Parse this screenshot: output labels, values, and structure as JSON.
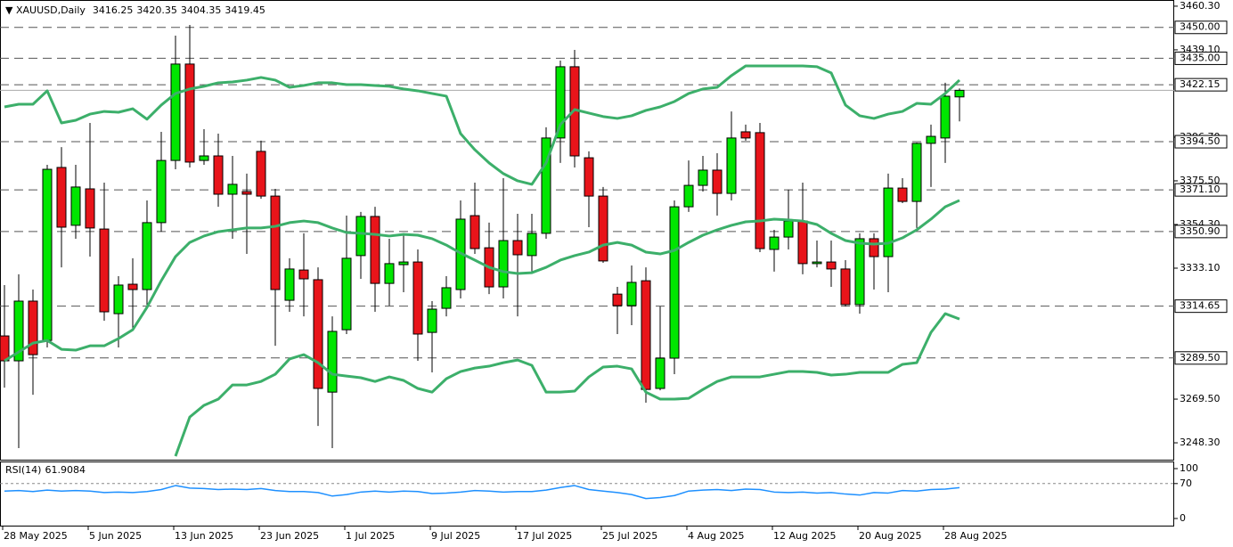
{
  "chart_data": [
    {
      "type": "candlestick",
      "symbol": "XAUUSD,Daily",
      "categories": [
        "28 May 2025",
        null,
        null,
        null,
        null,
        null,
        "5 Jun 2025",
        null,
        null,
        null,
        null,
        null,
        "13 Jun 2025",
        null,
        null,
        null,
        null,
        null,
        "23 Jun 2025",
        null,
        null,
        null,
        null,
        null,
        "1 Jul 2025",
        null,
        null,
        null,
        null,
        null,
        "9 Jul 2025",
        null,
        null,
        null,
        null,
        null,
        "17 Jul 2025",
        null,
        null,
        null,
        null,
        null,
        "25 Jul 2025",
        null,
        null,
        null,
        null,
        null,
        "4 Aug 2025",
        null,
        null,
        null,
        null,
        null,
        "12 Aug 2025",
        null,
        null,
        null,
        null,
        null,
        "20 Aug 2025",
        null,
        null,
        null,
        null,
        null,
        "28 Aug 2025",
        null
      ],
      "open": [
        3300.2,
        3288.1,
        3317.1,
        3298.0,
        3382.0,
        3353.9,
        3371.6,
        3352.1,
        3311.0,
        3325.3,
        3322.7,
        3355.2,
        3385.4,
        3432.2,
        3385.4,
        3387.6,
        3369.0,
        3370.3,
        3389.8,
        3368.1,
        3317.5,
        3332.2,
        3327.5,
        3272.9,
        3303.2,
        3339.2,
        3358.2,
        3325.7,
        3334.8,
        3336.1,
        3301.9,
        3313.6,
        3322.7,
        3358.6,
        3343.0,
        3324.0,
        3346.5,
        3339.2,
        3350.0,
        3396.3,
        3430.9,
        3386.7,
        3368.1,
        3320.5,
        3314.9,
        3327.0,
        3274.7,
        3289.4,
        3362.9,
        3373.3,
        3380.7,
        3369.4,
        3399.3,
        3398.9,
        3342.2,
        3348.2,
        3356.0,
        3335.3,
        3336.1,
        3332.7,
        3315.4,
        3347.4,
        3338.7,
        3372.0,
        3365.5,
        3393.7,
        3396.3,
        3416.25
      ],
      "high": [
        3324.9,
        3330.1,
        3322.7,
        3383.3,
        3391.9,
        3383.3,
        3403.6,
        3374.6,
        3329.2,
        3337.9,
        3366.0,
        3399.3,
        3446.0,
        3451.2,
        3400.6,
        3398.4,
        3387.6,
        3379.0,
        3395.0,
        3371.6,
        3337.9,
        3350.0,
        3333.5,
        3309.7,
        3358.6,
        3360.4,
        3362.9,
        3347.4,
        3350.0,
        3342.2,
        3317.1,
        3329.2,
        3366.0,
        3374.6,
        3355.2,
        3376.8,
        3359.5,
        3359.5,
        3401.5,
        3433.9,
        3439.1,
        3389.8,
        3372.5,
        3324.0,
        3334.4,
        3333.5,
        3314.5,
        3366.0,
        3385.4,
        3387.6,
        3388.9,
        3409.2,
        3402.8,
        3403.6,
        3351.7,
        3371.2,
        3374.6,
        3346.5,
        3346.5,
        3337.0,
        3350.0,
        3350.0,
        3379.0,
        3376.8,
        3394.1,
        3402.8,
        3423.1,
        3420.35
      ],
      "low": [
        3275.1,
        3245.7,
        3271.6,
        3294.6,
        3333.5,
        3347.4,
        3338.7,
        3307.6,
        3294.6,
        3303.2,
        3314.1,
        3350.8,
        3381.1,
        3382.0,
        3383.3,
        3362.9,
        3347.4,
        3340.0,
        3366.8,
        3295.4,
        3311.9,
        3309.7,
        3256.5,
        3245.7,
        3301.1,
        3327.9,
        3311.9,
        3314.9,
        3321.4,
        3288.1,
        3282.5,
        3309.7,
        3318.4,
        3340.0,
        3320.5,
        3318.4,
        3309.7,
        3331.4,
        3347.4,
        3384.2,
        3382.0,
        3353.0,
        3335.7,
        3301.1,
        3305.4,
        3267.8,
        3273.8,
        3281.6,
        3360.4,
        3370.3,
        3358.6,
        3366.0,
        3395.0,
        3340.9,
        3331.4,
        3342.2,
        3330.1,
        3333.5,
        3324.0,
        3314.5,
        3311.0,
        3322.7,
        3321.4,
        3364.7,
        3352.6,
        3372.5,
        3384.2,
        3404.35
      ],
      "close": [
        3288.1,
        3317.1,
        3291.1,
        3381.1,
        3353.0,
        3372.5,
        3352.6,
        3311.9,
        3324.9,
        3322.7,
        3355.2,
        3385.4,
        3432.2,
        3384.6,
        3387.6,
        3369.0,
        3373.8,
        3369.0,
        3368.1,
        3322.7,
        3332.7,
        3327.9,
        3274.7,
        3302.4,
        3337.9,
        3358.2,
        3325.7,
        3335.3,
        3336.1,
        3301.1,
        3313.2,
        3323.6,
        3356.9,
        3342.6,
        3324.0,
        3346.5,
        3339.6,
        3350.0,
        3396.3,
        3430.9,
        3387.6,
        3368.1,
        3336.6,
        3314.9,
        3326.2,
        3274.2,
        3289.4,
        3362.9,
        3373.3,
        3380.7,
        3369.4,
        3396.3,
        3396.3,
        3342.6,
        3348.2,
        3356.0,
        3335.3,
        3336.1,
        3332.7,
        3315.4,
        3347.4,
        3338.7,
        3372.0,
        3365.5,
        3393.7,
        3397.1,
        3416.6,
        3419.45
      ],
      "up_color": "#00e600",
      "down_color": "#e8141a",
      "bands": {
        "upper": [
          3411.4,
          3412.7,
          3412.7,
          3419.2,
          3403.6,
          3404.9,
          3407.9,
          3409.2,
          3408.8,
          3410.5,
          3405.4,
          3412.3,
          3417.9,
          3420.1,
          3421.4,
          3423.1,
          3423.5,
          3424.4,
          3425.7,
          3424.4,
          3420.9,
          3421.8,
          3423.1,
          3423.1,
          3422.2,
          3422.2,
          3421.8,
          3421.4,
          3420.1,
          3419.2,
          3417.9,
          3416.6,
          3398.4,
          3390.6,
          3384.2,
          3379.0,
          3375.5,
          3373.8,
          3384.2,
          3402.8,
          3410.1,
          3408.4,
          3406.7,
          3405.8,
          3407.1,
          3409.7,
          3411.4,
          3414.0,
          3417.9,
          3420.1,
          3420.9,
          3426.6,
          3431.3,
          3431.3,
          3431.3,
          3431.3,
          3431.3,
          3430.9,
          3427.9,
          3412.3,
          3407.1,
          3405.8,
          3407.9,
          3409.2,
          3413.1,
          3412.7,
          3417.9,
          3424.4
        ],
        "middle": [
          3288.1,
          3292.4,
          3296.7,
          3298.0,
          3293.7,
          3293.3,
          3295.4,
          3295.4,
          3298.9,
          3303.2,
          3314.1,
          3327.0,
          3338.7,
          3345.6,
          3348.7,
          3350.8,
          3351.7,
          3352.6,
          3352.6,
          3353.4,
          3355.2,
          3356.0,
          3355.2,
          3352.6,
          3350.4,
          3350.0,
          3349.5,
          3348.7,
          3349.5,
          3349.1,
          3347.4,
          3344.3,
          3340.4,
          3337.0,
          3333.5,
          3331.4,
          3330.5,
          3330.9,
          3333.5,
          3337.0,
          3339.2,
          3340.9,
          3344.3,
          3345.6,
          3344.3,
          3340.9,
          3340.0,
          3341.7,
          3345.6,
          3349.1,
          3351.7,
          3353.9,
          3355.6,
          3356.0,
          3356.9,
          3356.5,
          3356.0,
          3354.3,
          3350.0,
          3346.5,
          3345.2,
          3344.8,
          3345.2,
          3347.8,
          3351.7,
          3356.9,
          3362.9,
          3366.0
        ],
        "lower": [
          null,
          null,
          null,
          null,
          null,
          null,
          null,
          null,
          null,
          null,
          null,
          null,
          3241.8,
          3260.8,
          3266.5,
          3269.5,
          3276.4,
          3276.4,
          3278.1,
          3281.6,
          3289.0,
          3291.1,
          3287.2,
          3281.6,
          3280.7,
          3279.9,
          3278.1,
          3280.3,
          3278.6,
          3274.7,
          3272.9,
          3279.4,
          3282.9,
          3284.6,
          3285.5,
          3287.2,
          3288.5,
          3285.9,
          3272.9,
          3272.9,
          3273.4,
          3280.3,
          3285.1,
          3285.5,
          3284.2,
          3272.9,
          3269.5,
          3269.5,
          3269.9,
          3274.2,
          3278.1,
          3280.3,
          3280.3,
          3280.3,
          3281.6,
          3282.9,
          3282.9,
          3282.5,
          3281.2,
          3281.6,
          3282.5,
          3282.5,
          3282.5,
          3286.4,
          3287.2,
          3301.9,
          3311.0,
          3308.4
        ]
      },
      "band_color": "#3caf6a",
      "levels": [
        {
          "value": 3450.0,
          "label": "3450.00"
        },
        {
          "value": 3435.0,
          "label": "3435.00"
        },
        {
          "value": 3422.15,
          "label": "3422.15"
        },
        {
          "value": 3394.5,
          "label": "3394.50"
        },
        {
          "value": 3371.1,
          "label": "3371.10"
        },
        {
          "value": 3350.9,
          "label": "3350.90"
        },
        {
          "value": 3314.65,
          "label": "3314.65"
        },
        {
          "value": 3289.5,
          "label": "3289.50"
        }
      ],
      "ylim": [
        3240.1,
        3463.3
      ],
      "yticks": [
        {
          "value": 3460.3,
          "label": "3460.30"
        },
        {
          "value": 3439.1,
          "label": "3439.10"
        },
        {
          "value": 3396.7,
          "label": "3396.70"
        },
        {
          "value": 3375.5,
          "label": "3375.50"
        },
        {
          "value": 3354.3,
          "label": "3354.30"
        },
        {
          "value": 3333.1,
          "label": "3333.10"
        },
        {
          "value": 3269.5,
          "label": "3269.50"
        },
        {
          "value": 3248.3,
          "label": "3248.30"
        }
      ]
    },
    {
      "type": "line",
      "title": "RSI(14)",
      "values": [
        55,
        56,
        54,
        57,
        55,
        56,
        55,
        52,
        53,
        52,
        54,
        58,
        66,
        61,
        60,
        58,
        59,
        58,
        60,
        56,
        54,
        54,
        52,
        45,
        48,
        53,
        55,
        53,
        55,
        54,
        50,
        51,
        53,
        56,
        55,
        53,
        54,
        54,
        57,
        62,
        66,
        58,
        55,
        52,
        48,
        40,
        42,
        46,
        55,
        57,
        58,
        56,
        59,
        58,
        53,
        52,
        53,
        51,
        52,
        49,
        47,
        52,
        51,
        56,
        55,
        58,
        59,
        61.9084
      ],
      "color": "#1e90ff",
      "levels": [
        70
      ],
      "ylim": [
        -14.3,
        114.3
      ],
      "yticks": [
        100,
        70,
        0
      ]
    }
  ]
}
